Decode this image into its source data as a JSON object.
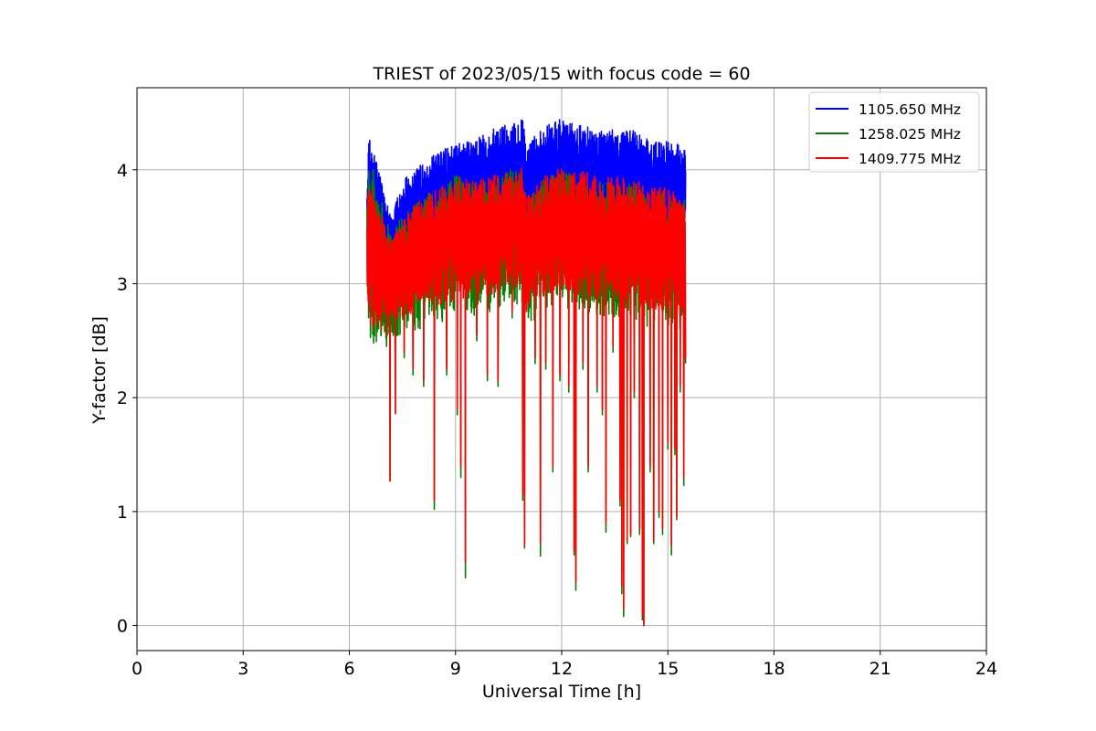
{
  "chart_data": {
    "type": "line",
    "title": "TRIEST of 2023/05/15 with focus code = 60",
    "xlabel": "Universal Time [h]",
    "ylabel": "Y-factor [dB]",
    "xlim": [
      0,
      24
    ],
    "ylim": [
      -0.22,
      4.72
    ],
    "xticks": [
      0,
      3,
      6,
      9,
      12,
      15,
      18,
      21,
      24
    ],
    "yticks": [
      0,
      1,
      2,
      3,
      4
    ],
    "grid": true,
    "legend_position": "upper-right",
    "series": [
      {
        "name": "1105.650 MHz",
        "color": "#0000ff",
        "envelope": {
          "x": [
            6.5,
            6.55,
            6.8,
            7.0,
            7.2,
            7.5,
            8.0,
            8.5,
            9.0,
            9.5,
            10.0,
            10.5,
            10.9,
            11.0,
            11.5,
            12.0,
            12.5,
            13.0,
            13.5,
            14.0,
            14.3,
            14.5,
            15.0,
            15.5
          ],
          "upper": [
            3.9,
            4.3,
            4.05,
            3.75,
            3.6,
            3.9,
            4.05,
            4.15,
            4.25,
            4.25,
            4.35,
            4.4,
            4.45,
            4.2,
            4.4,
            4.45,
            4.4,
            4.35,
            4.35,
            4.35,
            4.3,
            4.25,
            4.25,
            4.2
          ],
          "lower": [
            3.3,
            3.55,
            3.5,
            3.35,
            3.25,
            3.35,
            3.4,
            3.45,
            3.5,
            3.5,
            3.55,
            3.6,
            3.6,
            3.3,
            3.55,
            3.6,
            3.6,
            3.55,
            3.55,
            3.55,
            3.5,
            3.45,
            3.45,
            3.4
          ]
        }
      },
      {
        "name": "1258.025 MHz",
        "color": "#008000",
        "envelope": {
          "x": [
            6.5,
            6.55,
            6.8,
            7.0,
            7.2,
            7.5,
            8.0,
            8.5,
            9.0,
            9.5,
            10.0,
            10.5,
            10.9,
            11.0,
            11.5,
            12.0,
            12.5,
            13.0,
            13.5,
            14.0,
            14.3,
            14.5,
            15.0,
            15.5
          ],
          "upper": [
            3.7,
            4.15,
            3.9,
            3.6,
            3.45,
            3.6,
            3.75,
            3.85,
            3.95,
            3.9,
            3.95,
            4.0,
            4.0,
            3.7,
            3.95,
            4.0,
            3.95,
            3.9,
            3.9,
            3.9,
            3.85,
            3.8,
            3.8,
            3.75
          ],
          "lower": [
            2.7,
            2.5,
            2.45,
            2.5,
            2.5,
            2.55,
            2.6,
            2.65,
            2.7,
            2.7,
            2.75,
            2.8,
            2.8,
            2.6,
            2.75,
            2.8,
            2.75,
            2.7,
            2.7,
            2.7,
            2.65,
            2.6,
            2.6,
            2.5
          ]
        },
        "dips": [
          {
            "x": 6.6,
            "y": 2.6
          },
          {
            "x": 6.9,
            "y": 2.55
          },
          {
            "x": 7.05,
            "y": 2.45
          },
          {
            "x": 7.15,
            "y": 1.27
          },
          {
            "x": 7.3,
            "y": 1.86
          },
          {
            "x": 7.55,
            "y": 2.35
          },
          {
            "x": 7.8,
            "y": 2.2
          },
          {
            "x": 8.1,
            "y": 2.1
          },
          {
            "x": 8.4,
            "y": 1.02
          },
          {
            "x": 8.75,
            "y": 2.2
          },
          {
            "x": 9.05,
            "y": 1.85
          },
          {
            "x": 9.15,
            "y": 1.3
          },
          {
            "x": 9.28,
            "y": 0.42
          },
          {
            "x": 9.6,
            "y": 2.5
          },
          {
            "x": 9.9,
            "y": 2.15
          },
          {
            "x": 10.2,
            "y": 2.1
          },
          {
            "x": 10.6,
            "y": 2.7
          },
          {
            "x": 10.9,
            "y": 1.1
          },
          {
            "x": 10.95,
            "y": 0.68
          },
          {
            "x": 11.25,
            "y": 2.3
          },
          {
            "x": 11.4,
            "y": 0.61
          },
          {
            "x": 11.55,
            "y": 2.25
          },
          {
            "x": 11.75,
            "y": 1.35
          },
          {
            "x": 11.95,
            "y": 2.15
          },
          {
            "x": 12.2,
            "y": 2.05
          },
          {
            "x": 12.35,
            "y": 0.62
          },
          {
            "x": 12.4,
            "y": 0.31
          },
          {
            "x": 12.6,
            "y": 2.25
          },
          {
            "x": 12.75,
            "y": 1.35
          },
          {
            "x": 13.0,
            "y": 2.05
          },
          {
            "x": 13.15,
            "y": 1.85
          },
          {
            "x": 13.25,
            "y": 0.82
          },
          {
            "x": 13.45,
            "y": 2.4
          },
          {
            "x": 13.65,
            "y": 1.05
          },
          {
            "x": 13.7,
            "y": 0.28
          },
          {
            "x": 13.75,
            "y": 0.08
          },
          {
            "x": 13.85,
            "y": 0.72
          },
          {
            "x": 13.95,
            "y": 0.78
          },
          {
            "x": 14.05,
            "y": 2.0
          },
          {
            "x": 14.2,
            "y": 0.8
          },
          {
            "x": 14.28,
            "y": 0.05
          },
          {
            "x": 14.32,
            "y": 0.0
          },
          {
            "x": 14.5,
            "y": 1.35
          },
          {
            "x": 14.6,
            "y": 0.72
          },
          {
            "x": 14.75,
            "y": 0.95
          },
          {
            "x": 14.85,
            "y": 0.8
          },
          {
            "x": 15.0,
            "y": 1.55
          },
          {
            "x": 15.1,
            "y": 0.62
          },
          {
            "x": 15.2,
            "y": 1.5
          },
          {
            "x": 15.25,
            "y": 0.93
          },
          {
            "x": 15.35,
            "y": 2.05
          },
          {
            "x": 15.45,
            "y": 1.23
          },
          {
            "x": 15.5,
            "y": 2.3
          }
        ]
      },
      {
        "name": "1409.775 MHz",
        "color": "#ff0000",
        "envelope": {
          "x": [
            6.5,
            6.55,
            6.8,
            7.0,
            7.2,
            7.5,
            8.0,
            8.5,
            9.0,
            9.5,
            10.0,
            10.5,
            10.9,
            11.0,
            11.5,
            12.0,
            12.5,
            13.0,
            13.5,
            14.0,
            14.3,
            14.5,
            15.0,
            15.5
          ],
          "upper": [
            3.6,
            3.95,
            3.75,
            3.55,
            3.4,
            3.55,
            3.75,
            3.85,
            3.95,
            3.9,
            3.95,
            4.0,
            4.05,
            3.75,
            3.95,
            4.05,
            4.0,
            3.95,
            3.95,
            3.9,
            3.9,
            3.85,
            3.85,
            3.8
          ],
          "lower": [
            2.85,
            2.6,
            2.55,
            2.6,
            2.65,
            2.7,
            2.75,
            2.8,
            2.85,
            2.85,
            2.9,
            2.95,
            2.95,
            2.75,
            2.9,
            2.95,
            2.9,
            2.85,
            2.85,
            2.85,
            2.8,
            2.75,
            2.75,
            2.7
          ]
        },
        "dips": [
          {
            "x": 6.6,
            "y": 2.65
          },
          {
            "x": 6.9,
            "y": 2.6
          },
          {
            "x": 7.05,
            "y": 2.55
          },
          {
            "x": 7.15,
            "y": 1.27
          },
          {
            "x": 7.3,
            "y": 1.86
          },
          {
            "x": 7.55,
            "y": 2.4
          },
          {
            "x": 7.8,
            "y": 2.25
          },
          {
            "x": 8.1,
            "y": 2.15
          },
          {
            "x": 8.4,
            "y": 1.1
          },
          {
            "x": 8.75,
            "y": 2.25
          },
          {
            "x": 9.05,
            "y": 1.9
          },
          {
            "x": 9.15,
            "y": 1.4
          },
          {
            "x": 9.28,
            "y": 0.55
          },
          {
            "x": 9.6,
            "y": 2.55
          },
          {
            "x": 9.9,
            "y": 2.2
          },
          {
            "x": 10.2,
            "y": 2.15
          },
          {
            "x": 10.6,
            "y": 2.75
          },
          {
            "x": 10.9,
            "y": 1.15
          },
          {
            "x": 10.95,
            "y": 0.7
          },
          {
            "x": 11.25,
            "y": 2.35
          },
          {
            "x": 11.4,
            "y": 0.72
          },
          {
            "x": 11.55,
            "y": 2.3
          },
          {
            "x": 11.75,
            "y": 1.4
          },
          {
            "x": 11.95,
            "y": 2.2
          },
          {
            "x": 12.2,
            "y": 2.1
          },
          {
            "x": 12.35,
            "y": 0.66
          },
          {
            "x": 12.4,
            "y": 0.38
          },
          {
            "x": 12.6,
            "y": 2.3
          },
          {
            "x": 12.75,
            "y": 1.4
          },
          {
            "x": 13.0,
            "y": 2.1
          },
          {
            "x": 13.15,
            "y": 1.9
          },
          {
            "x": 13.25,
            "y": 0.9
          },
          {
            "x": 13.45,
            "y": 2.45
          },
          {
            "x": 13.65,
            "y": 1.1
          },
          {
            "x": 13.7,
            "y": 0.35
          },
          {
            "x": 13.75,
            "y": 0.15
          },
          {
            "x": 13.85,
            "y": 0.75
          },
          {
            "x": 13.95,
            "y": 0.8
          },
          {
            "x": 14.05,
            "y": 2.05
          },
          {
            "x": 14.2,
            "y": 0.85
          },
          {
            "x": 14.28,
            "y": 0.1
          },
          {
            "x": 14.32,
            "y": 0.0
          },
          {
            "x": 14.5,
            "y": 1.4
          },
          {
            "x": 14.6,
            "y": 0.75
          },
          {
            "x": 14.75,
            "y": 1.0
          },
          {
            "x": 14.85,
            "y": 0.85
          },
          {
            "x": 15.0,
            "y": 1.6
          },
          {
            "x": 15.1,
            "y": 0.7
          },
          {
            "x": 15.2,
            "y": 1.55
          },
          {
            "x": 15.25,
            "y": 0.95
          },
          {
            "x": 15.35,
            "y": 2.1
          },
          {
            "x": 15.45,
            "y": 1.3
          },
          {
            "x": 15.5,
            "y": 2.35
          }
        ]
      }
    ]
  }
}
